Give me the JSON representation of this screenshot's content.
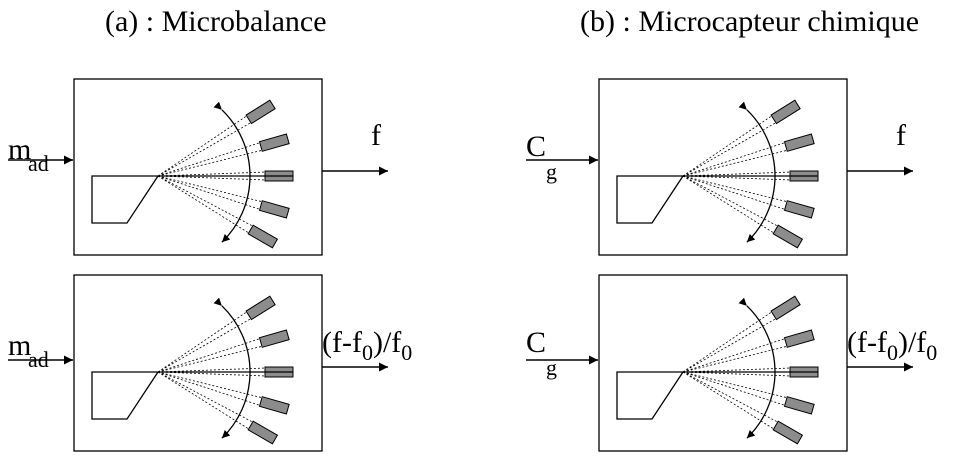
{
  "titles": {
    "left": "(a) : Microbalance",
    "right": "(b) : Microcapteur chimique"
  },
  "panels": [
    {
      "input": {
        "main": "m",
        "sub": "ad"
      },
      "output": {
        "parts": [
          "f"
        ]
      }
    },
    {
      "input": {
        "main": "C",
        "sub": "g"
      },
      "output": {
        "parts": [
          "f"
        ]
      }
    },
    {
      "input": {
        "main": "m",
        "sub": "ad"
      },
      "output": {
        "parts": [
          "(f-f",
          "0",
          ")/f",
          "0"
        ]
      }
    },
    {
      "input": {
        "main": "C",
        "sub": "g"
      },
      "output": {
        "parts": [
          "(f-f",
          "0",
          ")/f",
          "0"
        ]
      }
    }
  ]
}
